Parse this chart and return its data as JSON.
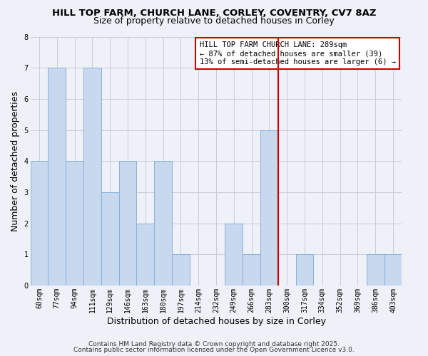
{
  "title": "HILL TOP FARM, CHURCH LANE, CORLEY, COVENTRY, CV7 8AZ",
  "subtitle": "Size of property relative to detached houses in Corley",
  "xlabel": "Distribution of detached houses by size in Corley",
  "ylabel": "Number of detached properties",
  "categories": [
    "60sqm",
    "77sqm",
    "94sqm",
    "111sqm",
    "129sqm",
    "146sqm",
    "163sqm",
    "180sqm",
    "197sqm",
    "214sqm",
    "232sqm",
    "249sqm",
    "266sqm",
    "283sqm",
    "300sqm",
    "317sqm",
    "334sqm",
    "352sqm",
    "369sqm",
    "386sqm",
    "403sqm"
  ],
  "values": [
    4,
    7,
    4,
    7,
    3,
    4,
    2,
    4,
    1,
    0,
    0,
    2,
    1,
    5,
    0,
    1,
    0,
    0,
    0,
    1,
    1
  ],
  "bar_color": "#c8d8ee",
  "bar_edge_color": "#8ab0d8",
  "bar_linewidth": 0.7,
  "grid_color": "#c8ccd8",
  "background_color": "#eef1f8",
  "vline_x": 13.5,
  "vline_color": "#cc0000",
  "vline_linewidth": 1.5,
  "annotation_text": "HILL TOP FARM CHURCH LANE: 289sqm\n← 87% of detached houses are smaller (39)\n13% of semi-detached houses are larger (6) →",
  "annotation_box_color": "#ffffff",
  "annotation_box_edge": "#cc0000",
  "ylim": [
    0,
    8
  ],
  "yticks": [
    0,
    1,
    2,
    3,
    4,
    5,
    6,
    7,
    8
  ],
  "footer1": "Contains HM Land Registry data © Crown copyright and database right 2025.",
  "footer2": "Contains public sector information licensed under the Open Government Licence v3.0.",
  "title_fontsize": 9.5,
  "subtitle_fontsize": 9,
  "xlabel_fontsize": 9,
  "ylabel_fontsize": 9,
  "tick_fontsize": 7,
  "footer_fontsize": 6.5,
  "annot_fontsize": 7.5
}
